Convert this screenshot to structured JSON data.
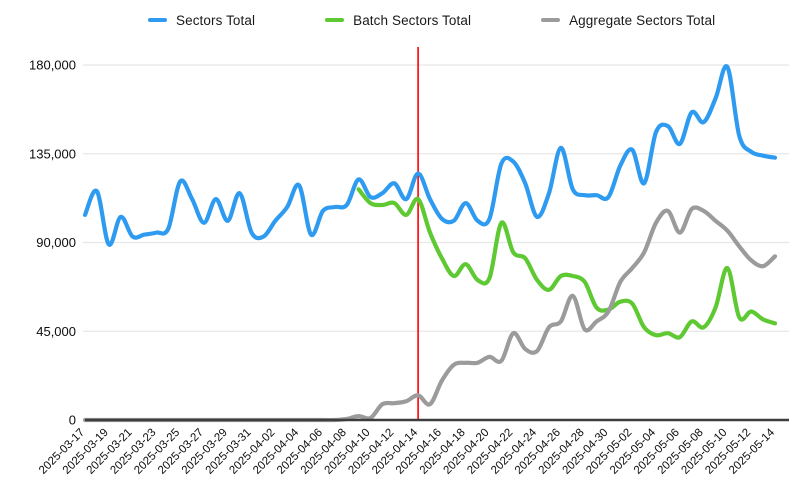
{
  "page": {
    "background": "#ffffff"
  },
  "legend": {
    "items": [
      {
        "label": "Sectors Total",
        "color": "#2E9BF0"
      },
      {
        "label": "Batch Sectors Total",
        "color": "#5FC933"
      },
      {
        "label": "Aggregate Sectors Total",
        "color": "#9B9B9B"
      }
    ]
  },
  "chart_data": {
    "type": "line",
    "title": "",
    "xlabel": "",
    "ylabel": "",
    "grid": true,
    "legend_position": "top",
    "ylim": [
      0,
      180000
    ],
    "y_ticks": [
      {
        "value": 0,
        "label": "0"
      },
      {
        "value": 45000,
        "label": "45,000"
      },
      {
        "value": 90000,
        "label": "90,000"
      },
      {
        "value": 135000,
        "label": "135,000"
      },
      {
        "value": 180000,
        "label": "180,000"
      }
    ],
    "x_tick_every": 2,
    "marker_line": {
      "x": "2025-04-14",
      "color": "#FF0000"
    },
    "x": [
      "2025-03-17",
      "2025-03-18",
      "2025-03-19",
      "2025-03-20",
      "2025-03-21",
      "2025-03-22",
      "2025-03-23",
      "2025-03-24",
      "2025-03-25",
      "2025-03-26",
      "2025-03-27",
      "2025-03-28",
      "2025-03-29",
      "2025-03-30",
      "2025-03-31",
      "2025-04-01",
      "2025-04-02",
      "2025-04-03",
      "2025-04-04",
      "2025-04-05",
      "2025-04-06",
      "2025-04-07",
      "2025-04-08",
      "2025-04-09",
      "2025-04-10",
      "2025-04-11",
      "2025-04-12",
      "2025-04-13",
      "2025-04-14",
      "2025-04-15",
      "2025-04-16",
      "2025-04-17",
      "2025-04-18",
      "2025-04-19",
      "2025-04-20",
      "2025-04-21",
      "2025-04-22",
      "2025-04-23",
      "2025-04-24",
      "2025-04-25",
      "2025-04-26",
      "2025-04-27",
      "2025-04-28",
      "2025-04-29",
      "2025-04-30",
      "2025-05-01",
      "2025-05-02",
      "2025-05-03",
      "2025-05-04",
      "2025-05-05",
      "2025-05-06",
      "2025-05-07",
      "2025-05-08",
      "2025-05-09",
      "2025-05-10",
      "2025-05-11",
      "2025-05-12",
      "2025-05-13",
      "2025-05-14"
    ],
    "series": [
      {
        "name": "Sectors Total",
        "color": "#2E9BF0",
        "values": [
          104000,
          116000,
          89000,
          103000,
          93000,
          94000,
          95000,
          97000,
          121000,
          112000,
          100000,
          112000,
          101000,
          115000,
          95000,
          93000,
          101000,
          108000,
          119000,
          94000,
          106000,
          108000,
          109000,
          122000,
          113000,
          115000,
          120000,
          112000,
          125000,
          112000,
          102000,
          101000,
          110000,
          101000,
          102000,
          130000,
          131000,
          120000,
          103000,
          115000,
          138000,
          117000,
          114000,
          114000,
          113000,
          129000,
          137000,
          120000,
          146000,
          149000,
          140000,
          156000,
          151000,
          163000,
          179000,
          144000,
          136000,
          134000,
          133000
        ]
      },
      {
        "name": "Batch Sectors Total",
        "color": "#5FC933",
        "values": [
          null,
          null,
          null,
          null,
          null,
          null,
          null,
          null,
          null,
          null,
          null,
          null,
          null,
          null,
          null,
          null,
          null,
          null,
          null,
          null,
          null,
          null,
          null,
          117000,
          110000,
          109000,
          110000,
          104000,
          112000,
          95000,
          82000,
          73000,
          79000,
          71000,
          72000,
          100000,
          85000,
          82000,
          71000,
          66000,
          73000,
          73000,
          70000,
          57000,
          56000,
          60000,
          59000,
          47000,
          43000,
          44000,
          42000,
          50000,
          47000,
          57000,
          77000,
          52000,
          55000,
          51000,
          49000
        ]
      },
      {
        "name": "Aggregate Sectors Total",
        "color": "#9B9B9B",
        "values": [
          0,
          0,
          0,
          0,
          0,
          0,
          0,
          0,
          0,
          0,
          0,
          0,
          0,
          0,
          0,
          0,
          0,
          0,
          0,
          0,
          0,
          0,
          500,
          2000,
          1000,
          8000,
          8500,
          9500,
          12500,
          8000,
          20000,
          28000,
          29000,
          29000,
          32000,
          30000,
          44000,
          36000,
          35000,
          47000,
          50000,
          63000,
          46000,
          50000,
          55000,
          70000,
          77000,
          85000,
          100000,
          106000,
          95000,
          107000,
          106000,
          101000,
          96000,
          88000,
          81000,
          78000,
          83000
        ]
      }
    ]
  }
}
